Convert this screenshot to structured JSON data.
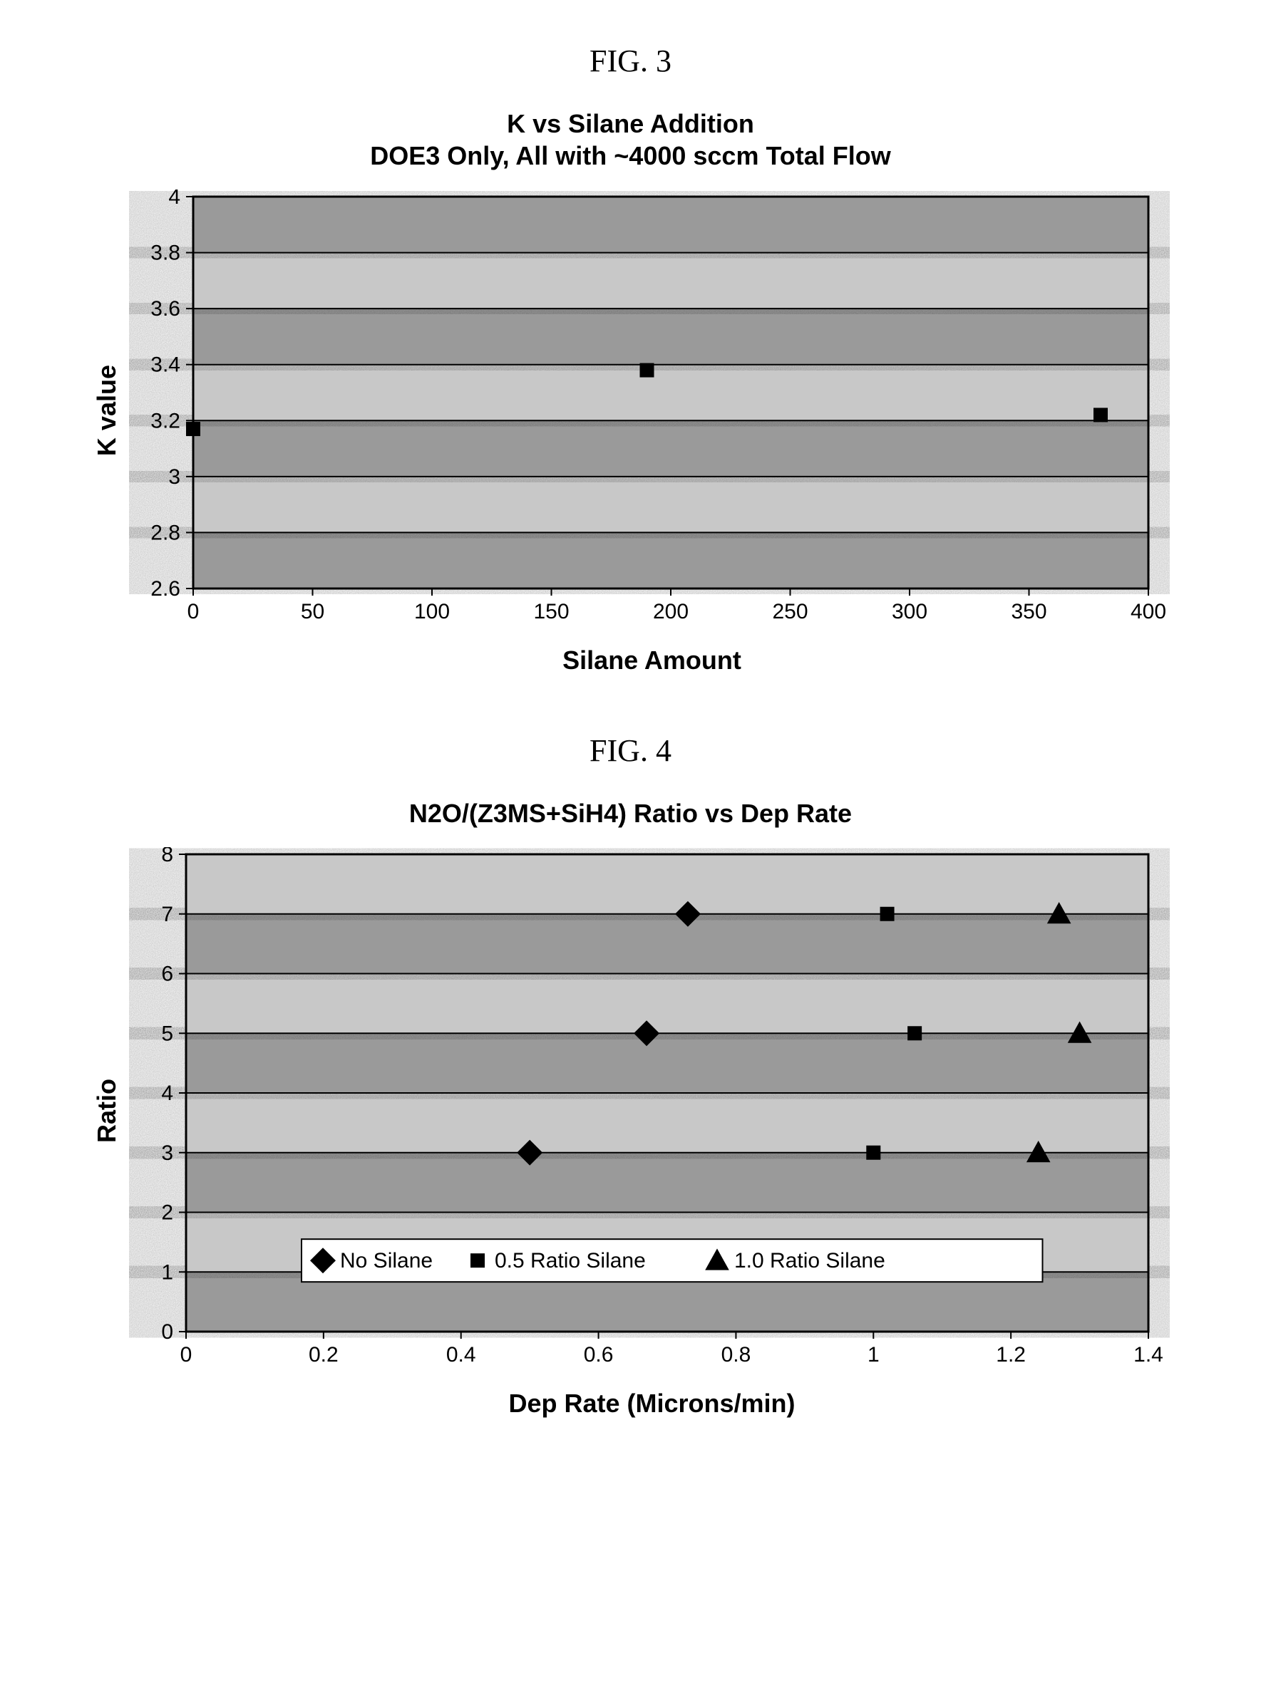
{
  "fig3": {
    "label": "FIG. 3",
    "title_line1": "K vs Silane Addition",
    "title_line2": "DOE3 Only, All with ~4000 sccm Total Flow",
    "ylabel": "K value",
    "xlabel": "Silane Amount",
    "type": "scatter",
    "xlim": [
      0,
      400
    ],
    "ylim": [
      2.6,
      4.0
    ],
    "xtick_step": 50,
    "ytick_step": 0.2,
    "xticks": [
      "0",
      "50",
      "100",
      "150",
      "200",
      "250",
      "300",
      "350",
      "400"
    ],
    "yticks": [
      "2.6",
      "2.8",
      "3",
      "3.2",
      "3.4",
      "3.6",
      "3.8",
      "4"
    ],
    "background_band_dark": "#9a9a9a",
    "background_band_light": "#c8c8c8",
    "grid_color": "#000000",
    "marker_color": "#000000",
    "marker_shape": "square",
    "marker_size": 20,
    "title_fontsize": 36,
    "label_fontsize": 36,
    "tick_fontsize": 30,
    "points": [
      {
        "x": 0,
        "y": 3.17
      },
      {
        "x": 190,
        "y": 3.38
      },
      {
        "x": 380,
        "y": 3.22
      }
    ]
  },
  "fig4": {
    "label": "FIG. 4",
    "title": "N2O/(Z3MS+SiH4) Ratio vs Dep Rate",
    "ylabel": "Ratio",
    "xlabel": "Dep Rate (Microns/min)",
    "type": "scatter",
    "xlim": [
      0,
      1.4
    ],
    "ylim": [
      0,
      8
    ],
    "xtick_step": 0.2,
    "ytick_step": 1,
    "xticks": [
      "0",
      "0.2",
      "0.4",
      "0.6",
      "0.8",
      "1",
      "1.2",
      "1.4"
    ],
    "yticks": [
      "0",
      "1",
      "2",
      "3",
      "4",
      "5",
      "6",
      "7",
      "8"
    ],
    "background_band_dark": "#9a9a9a",
    "background_band_light": "#c8c8c8",
    "grid_color": "#000000",
    "title_fontsize": 36,
    "label_fontsize": 36,
    "tick_fontsize": 30,
    "legend_position": "bottom-inside",
    "series": [
      {
        "name": "No Silane",
        "marker": "diamond",
        "color": "#000000",
        "size": 24,
        "points": [
          {
            "x": 0.5,
            "y": 3
          },
          {
            "x": 0.67,
            "y": 5
          },
          {
            "x": 0.73,
            "y": 7
          }
        ]
      },
      {
        "name": "0.5 Ratio Silane",
        "marker": "square",
        "color": "#000000",
        "size": 20,
        "points": [
          {
            "x": 1.0,
            "y": 3
          },
          {
            "x": 1.06,
            "y": 5
          },
          {
            "x": 1.02,
            "y": 7
          }
        ]
      },
      {
        "name": "1.0 Ratio Silane",
        "marker": "triangle",
        "color": "#000000",
        "size": 24,
        "points": [
          {
            "x": 1.24,
            "y": 3
          },
          {
            "x": 1.3,
            "y": 5
          },
          {
            "x": 1.27,
            "y": 7
          }
        ]
      }
    ],
    "legend_items": [
      "No Silane",
      "0.5 Ratio Silane",
      "1.0 Ratio Silane"
    ]
  }
}
